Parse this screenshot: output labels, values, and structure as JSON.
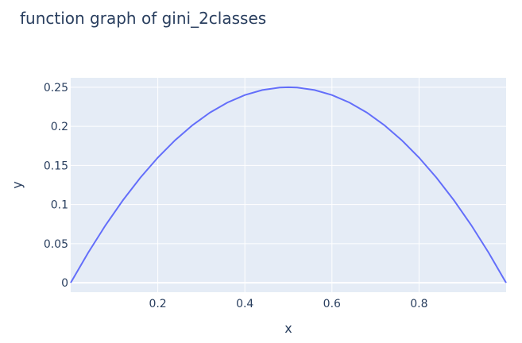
{
  "chart_data": {
    "type": "line",
    "title": "function graph of gini_2classes",
    "xlabel": "x",
    "ylabel": "y",
    "xlim": [
      0,
      1
    ],
    "ylim": [
      -0.012,
      0.262
    ],
    "x_ticks": [
      0.2,
      0.4,
      0.6,
      0.8
    ],
    "x_tick_labels": [
      "0.2",
      "0.4",
      "0.6",
      "0.8"
    ],
    "y_ticks": [
      0,
      0.05,
      0.1,
      0.15,
      0.2,
      0.25
    ],
    "y_tick_labels": [
      "0",
      "0.05",
      "0.1",
      "0.15",
      "0.2",
      "0.25"
    ],
    "grid": true,
    "colors": {
      "plot_bg": "#e5ecf6",
      "line": "#636efa",
      "grid": "#ffffff",
      "text": "#2a3f5f"
    },
    "series": [
      {
        "x": [
          0,
          0.04,
          0.08,
          0.12,
          0.16,
          0.2,
          0.24,
          0.28,
          0.32,
          0.36,
          0.4,
          0.44,
          0.48,
          0.5,
          0.52,
          0.56,
          0.6,
          0.64,
          0.68,
          0.72,
          0.76,
          0.8,
          0.84,
          0.88,
          0.92,
          0.96,
          1
        ],
        "y": [
          0,
          0.0384,
          0.0736,
          0.1056,
          0.1344,
          0.16,
          0.1824,
          0.2016,
          0.2176,
          0.2304,
          0.24,
          0.2464,
          0.2496,
          0.25,
          0.2496,
          0.2464,
          0.24,
          0.2304,
          0.2176,
          0.2016,
          0.1824,
          0.16,
          0.1344,
          0.1056,
          0.0736,
          0.0384,
          0
        ]
      }
    ]
  }
}
